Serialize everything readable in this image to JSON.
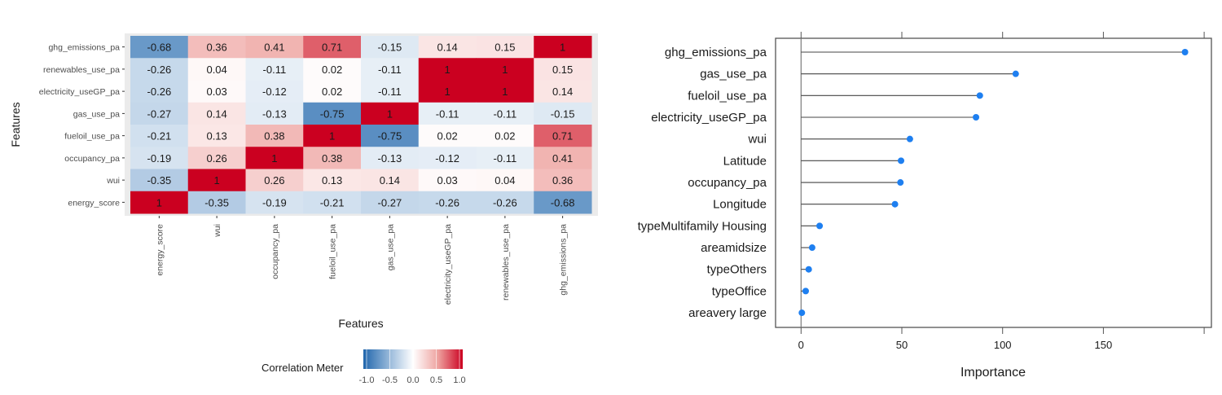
{
  "chart_data": [
    {
      "type": "heatmap",
      "title": "",
      "xlabel": "Features",
      "ylabel": "Features",
      "x_categories": [
        "energy_score",
        "wui",
        "occupancy_pa",
        "fueloil_use_pa",
        "gas_use_pa",
        "electricity_useGP_pa",
        "renewables_use_pa",
        "ghg_emissions_pa"
      ],
      "y_categories": [
        "ghg_emissions_pa",
        "renewables_use_pa",
        "electricity_useGP_pa",
        "gas_use_pa",
        "fueloil_use_pa",
        "occupancy_pa",
        "wui",
        "energy_score"
      ],
      "values": [
        [
          -0.68,
          0.36,
          0.41,
          0.71,
          -0.15,
          0.14,
          0.15,
          1
        ],
        [
          -0.26,
          0.04,
          -0.11,
          0.02,
          -0.11,
          1,
          1,
          0.15
        ],
        [
          -0.26,
          0.03,
          -0.12,
          0.02,
          -0.11,
          1,
          1,
          0.14
        ],
        [
          -0.27,
          0.14,
          -0.13,
          -0.75,
          1,
          -0.11,
          -0.11,
          -0.15
        ],
        [
          -0.21,
          0.13,
          0.38,
          1,
          -0.75,
          0.02,
          0.02,
          0.71
        ],
        [
          -0.19,
          0.26,
          1,
          0.38,
          -0.13,
          -0.12,
          -0.11,
          0.41
        ],
        [
          -0.35,
          1,
          0.26,
          0.13,
          0.14,
          0.03,
          0.04,
          0.36
        ],
        [
          1,
          -0.35,
          -0.19,
          -0.21,
          -0.27,
          -0.26,
          -0.26,
          -0.68
        ]
      ],
      "legend": {
        "title": "Correlation Meter",
        "placement": "bottom",
        "ticks": [
          "-1.0",
          "-0.5",
          "0.0",
          "0.5",
          "1.0"
        ],
        "range": [
          -1,
          1
        ],
        "colors": {
          "low": "#2166ac",
          "mid": "#ffffff",
          "high": "#cb0020"
        }
      }
    },
    {
      "type": "scatter",
      "subtype": "lollipop",
      "title": "",
      "xlabel": "Importance",
      "ylabel": "",
      "categories": [
        "ghg_emissions_pa",
        "gas_use_pa",
        "fueloil_use_pa",
        "electricity_useGP_pa",
        "wui",
        "Latitude",
        "occupancy_pa",
        "Longitude",
        "typeMultifamily Housing",
        "areamidsize",
        "typeOthers",
        "typeOffice",
        "areavery large"
      ],
      "values": [
        190.5,
        106.5,
        88.7,
        86.8,
        54.0,
        49.6,
        49.3,
        46.6,
        9.2,
        5.5,
        3.8,
        2.3,
        0.4
      ],
      "xlim": [
        -12,
        203
      ],
      "xticks": [
        0,
        50,
        100,
        150,
        200
      ],
      "xtick_labels": [
        "0",
        "50",
        "100",
        "150",
        ""
      ],
      "point_color": "#1e7ff0",
      "grid": false
    }
  ]
}
